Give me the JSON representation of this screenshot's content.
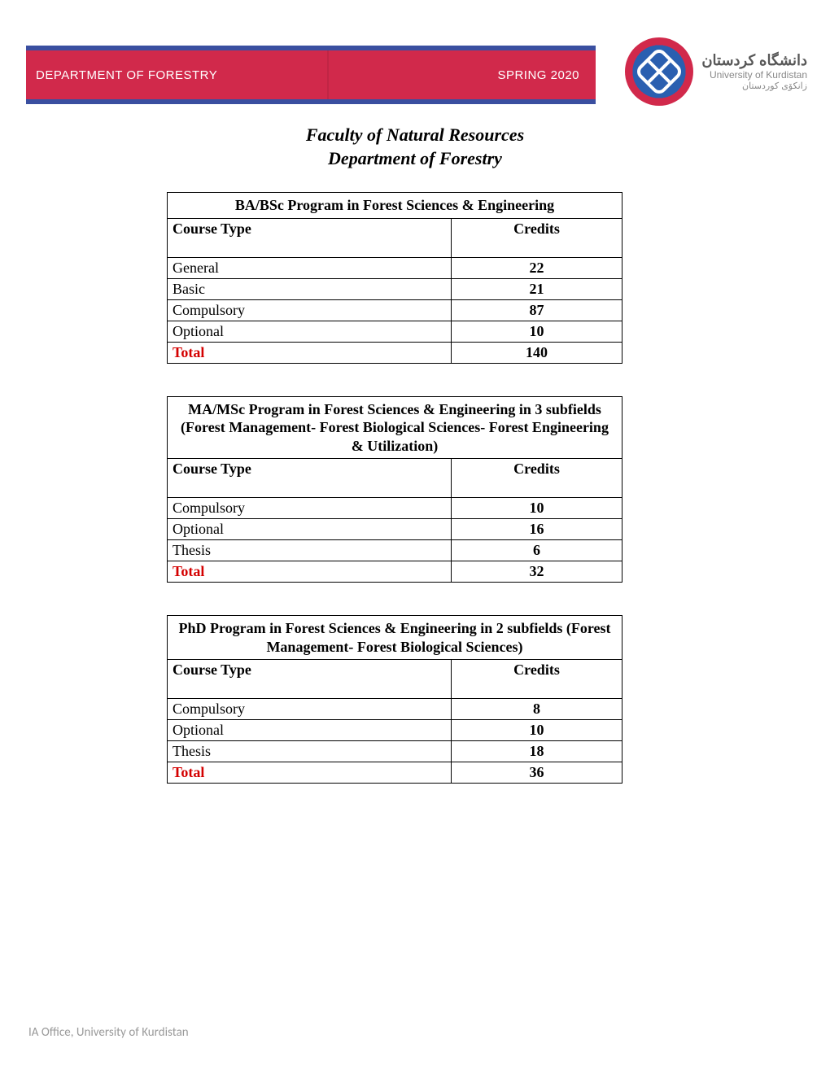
{
  "header": {
    "left": "DEPARTMENT OF FORESTRY",
    "right": "SPRING 2020"
  },
  "university": {
    "fa": "دانشگاه کردستان",
    "en": "University of Kurdistan",
    "ku": "زانکۆی کوردستان"
  },
  "title": {
    "line1": "Faculty of Natural Resources",
    "line2": "Department of Forestry"
  },
  "labels": {
    "course_type": "Course Type",
    "credits": "Credits",
    "total": "Total"
  },
  "tables": [
    {
      "title": "BA/BSc Program in Forest Sciences & Engineering",
      "rows": [
        {
          "type": "General",
          "credits": "22"
        },
        {
          "type": "Basic",
          "credits": "21"
        },
        {
          "type": "Compulsory",
          "credits": "87"
        },
        {
          "type": "Optional",
          "credits": "10"
        }
      ],
      "total": "140"
    },
    {
      "title": "MA/MSc Program in Forest Sciences & Engineering in 3 subfields (Forest Management- Forest Biological Sciences- Forest Engineering & Utilization)",
      "rows": [
        {
          "type": "Compulsory",
          "credits": "10"
        },
        {
          "type": "Optional",
          "credits": "16"
        },
        {
          "type": "Thesis",
          "credits": "6"
        }
      ],
      "total": "32"
    },
    {
      "title": "PhD Program in Forest Sciences & Engineering in 2 subfields (Forest Management- Forest Biological Sciences)",
      "rows": [
        {
          "type": "Compulsory",
          "credits": "8"
        },
        {
          "type": "Optional",
          "credits": "10"
        },
        {
          "type": "Thesis",
          "credits": "18"
        }
      ],
      "total": "36"
    }
  ],
  "footer": "IA Office, University of Kurdistan",
  "colors": {
    "band_bg": "#d1294b",
    "band_border": "#3a4fa0",
    "total_color": "#d40000",
    "footer_color": "#9a9a9a"
  }
}
